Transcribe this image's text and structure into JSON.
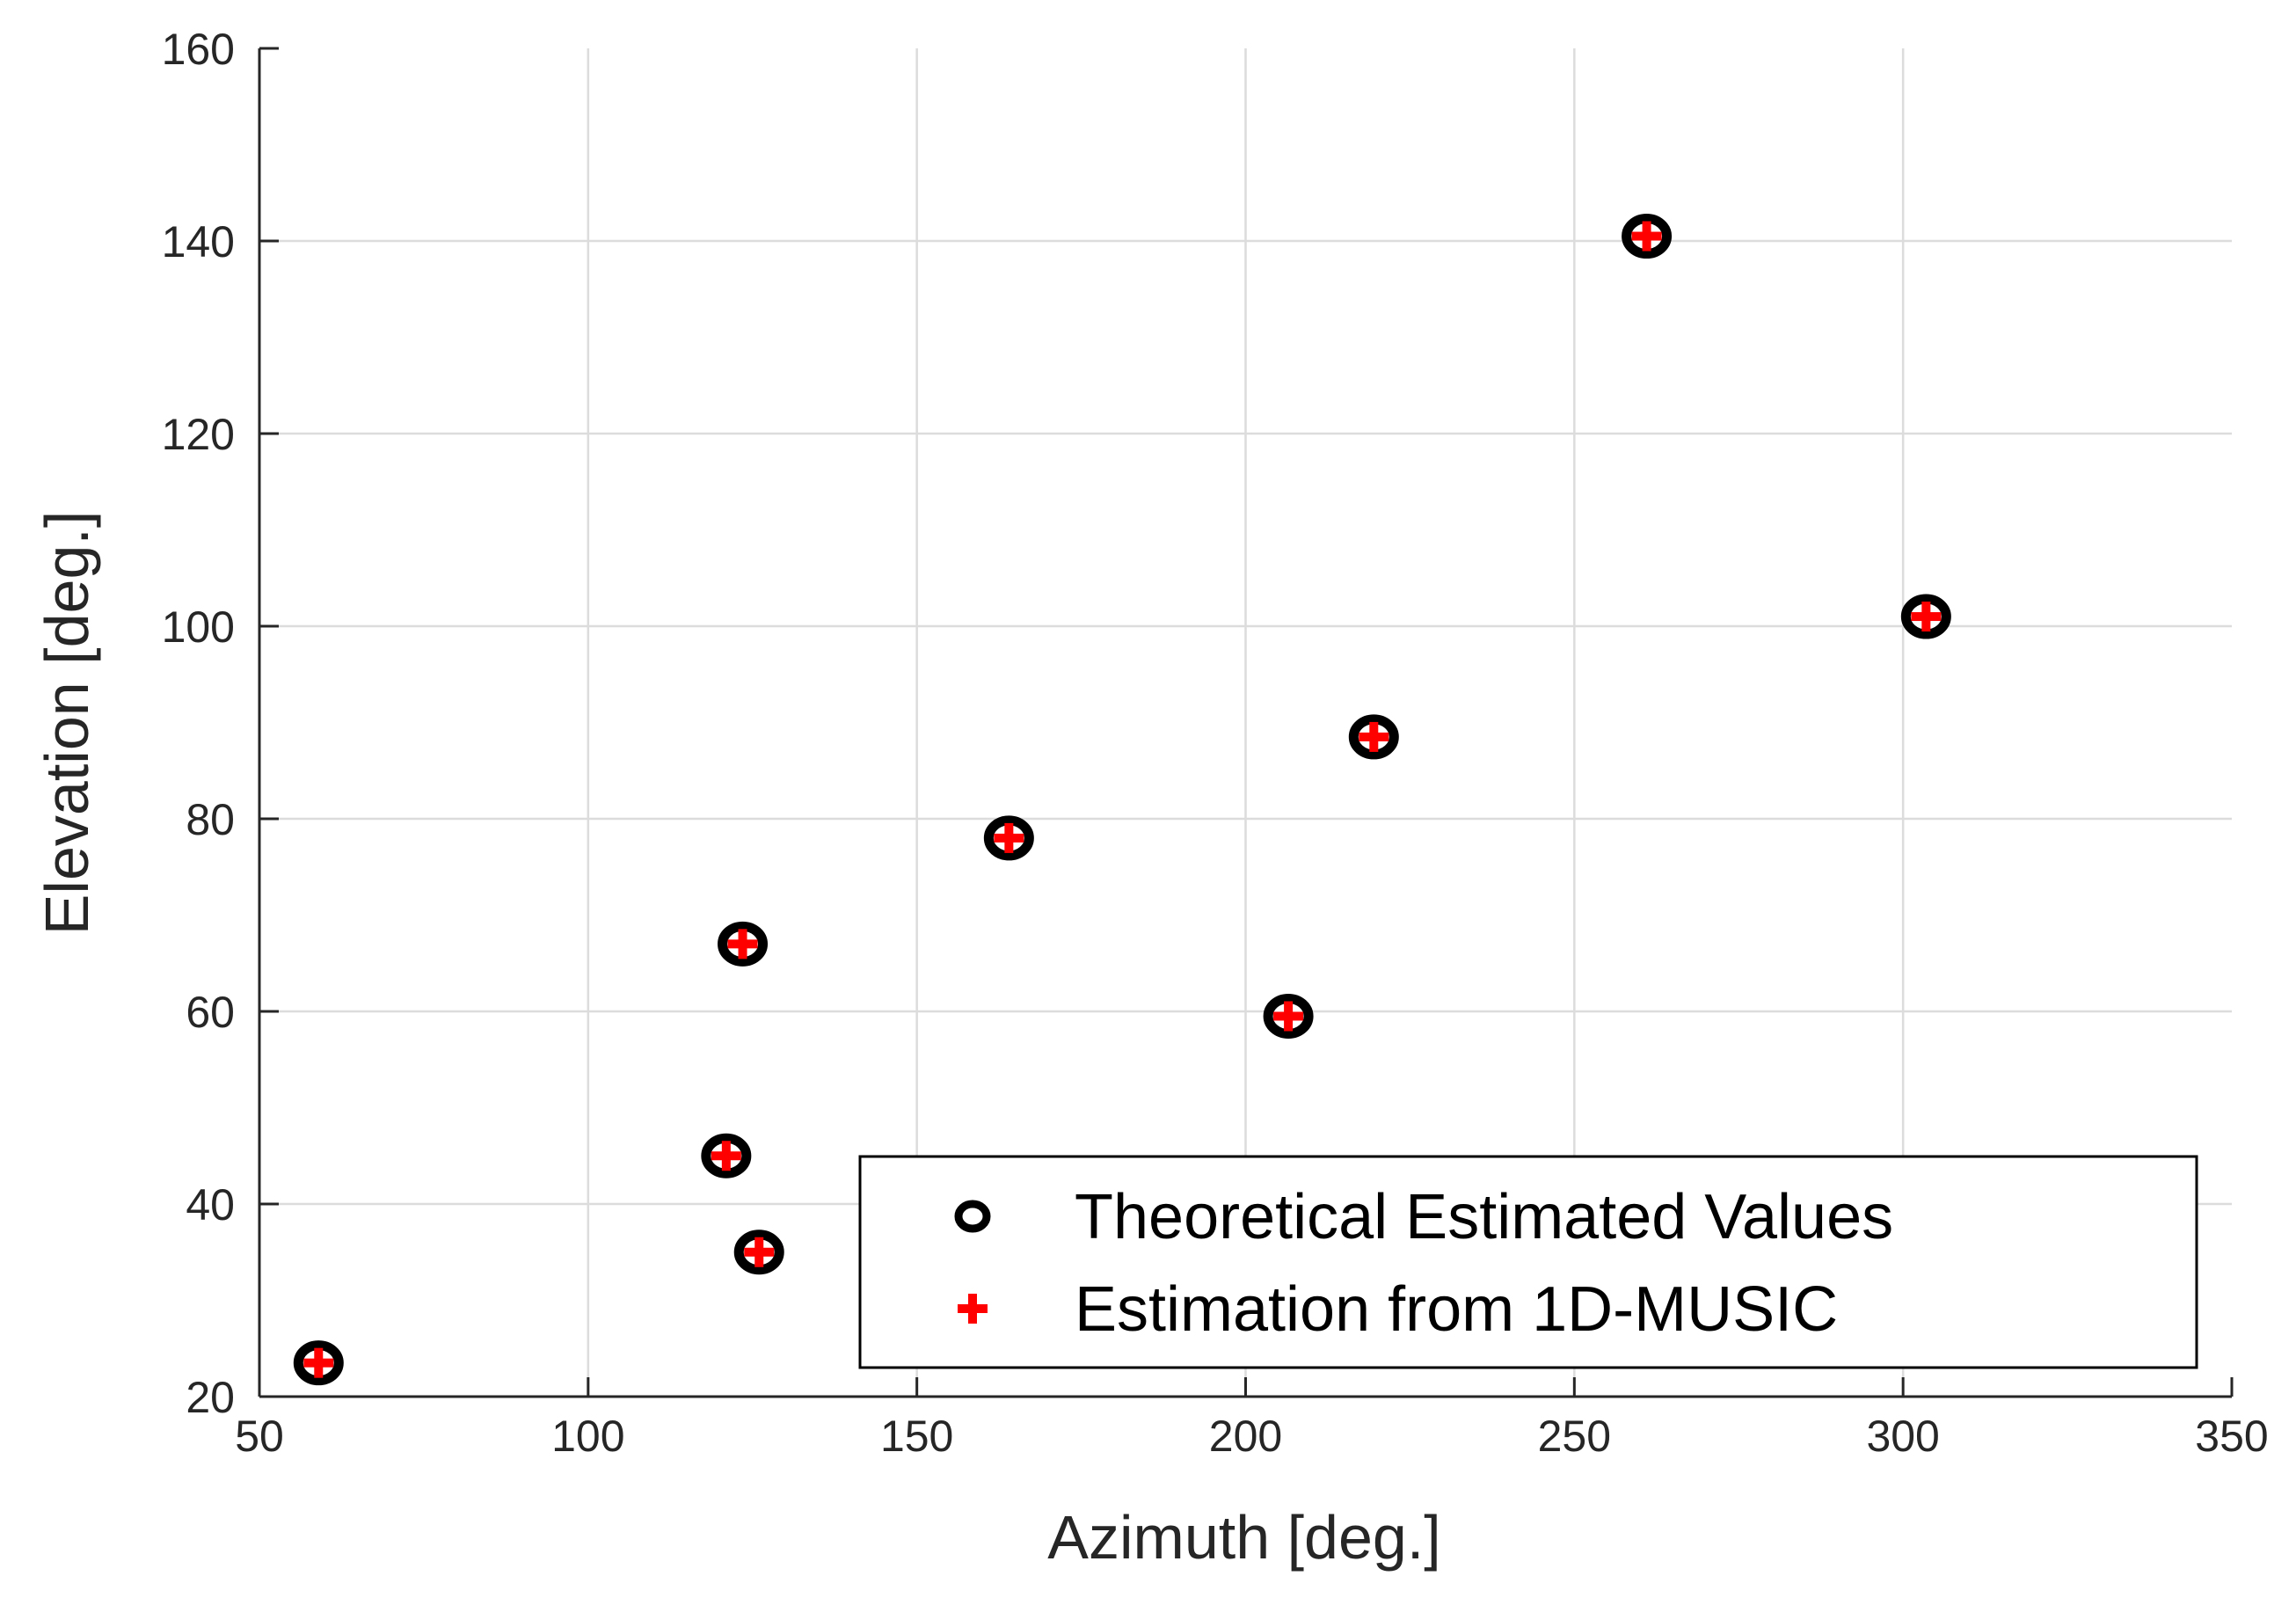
{
  "chart_data": {
    "type": "scatter",
    "title": "",
    "xlabel": "Azimuth [deg.]",
    "ylabel": "Elevation [deg.]",
    "xlim": [
      50,
      350
    ],
    "ylim": [
      20,
      160
    ],
    "xticks": [
      50,
      100,
      150,
      200,
      250,
      300,
      350
    ],
    "yticks": [
      20,
      40,
      60,
      80,
      100,
      120,
      140,
      160
    ],
    "grid": true,
    "legend_position": "bottom-right",
    "colors": {
      "theoretical": "#000000",
      "estimation": "#ff0000",
      "axis": "#262626",
      "grid": "#dcdcdc"
    },
    "series": [
      {
        "name": "Theoretical Estimated Values",
        "marker": "circle",
        "points": [
          {
            "x": 59,
            "y": 23.5
          },
          {
            "x": 121,
            "y": 45
          },
          {
            "x": 123.5,
            "y": 67
          },
          {
            "x": 126,
            "y": 35
          },
          {
            "x": 164,
            "y": 78
          },
          {
            "x": 206.5,
            "y": 59.5
          },
          {
            "x": 219.5,
            "y": 88.5
          },
          {
            "x": 261,
            "y": 140.5
          },
          {
            "x": 303.5,
            "y": 101
          }
        ]
      },
      {
        "name": "Estimation from 1D-MUSIC",
        "marker": "plus",
        "points": [
          {
            "x": 59,
            "y": 23.5
          },
          {
            "x": 121,
            "y": 45
          },
          {
            "x": 123.5,
            "y": 67
          },
          {
            "x": 126,
            "y": 35
          },
          {
            "x": 164,
            "y": 78
          },
          {
            "x": 206.5,
            "y": 59.5
          },
          {
            "x": 219.5,
            "y": 88.5
          },
          {
            "x": 261,
            "y": 140.5
          },
          {
            "x": 303.5,
            "y": 101
          }
        ]
      }
    ]
  }
}
